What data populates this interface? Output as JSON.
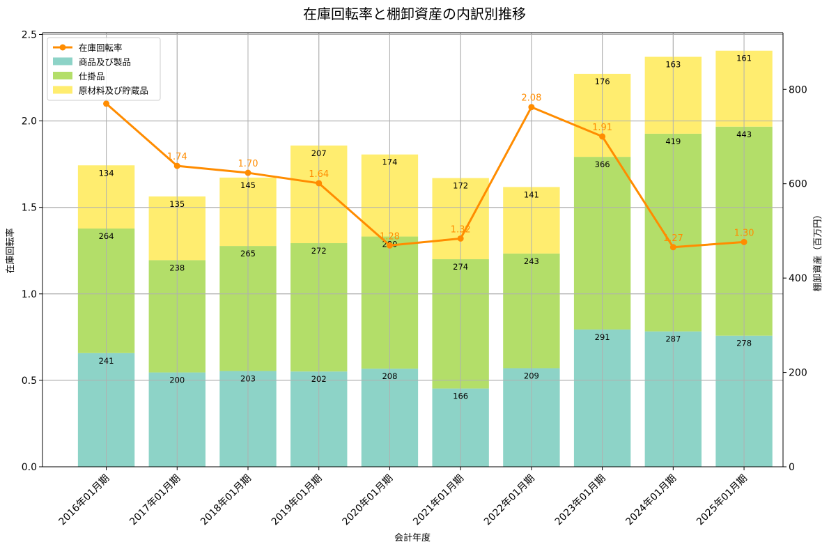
{
  "chart_data": {
    "type": "bar",
    "title": "在庫回転率と棚卸資産の内訳別推移",
    "xlabel": "会計年度",
    "ylabel_left": "在庫回転率",
    "ylabel_right": "棚卸資産（百万円）",
    "categories": [
      "2016年01月期",
      "2017年01月期",
      "2018年01月期",
      "2019年01月期",
      "2020年01月期",
      "2021年01月期",
      "2022年01月期",
      "2023年01月期",
      "2024年01月期",
      "2025年01月期"
    ],
    "series": [
      {
        "name": "商品及び製品",
        "kind": "stacked-bar",
        "axis": "right",
        "color": "#8dd3c7",
        "values": [
          241,
          200,
          203,
          202,
          208,
          166,
          209,
          291,
          287,
          278
        ]
      },
      {
        "name": "仕掛品",
        "kind": "stacked-bar",
        "axis": "right",
        "color": "#b3de69",
        "values": [
          264,
          238,
          265,
          272,
          280,
          274,
          243,
          366,
          419,
          443
        ]
      },
      {
        "name": "原材料及び貯蔵品",
        "kind": "stacked-bar",
        "axis": "right",
        "color": "#ffed6f",
        "values": [
          134,
          135,
          145,
          207,
          174,
          172,
          141,
          176,
          163,
          161
        ]
      },
      {
        "name": "在庫回転率",
        "kind": "line",
        "axis": "left",
        "color": "#ff8c00",
        "values": [
          2.1,
          1.74,
          1.7,
          1.64,
          1.28,
          1.32,
          2.08,
          1.91,
          1.27,
          1.3
        ],
        "labels": [
          "",
          "1.74",
          "1.70",
          "1.64",
          "1.28",
          "1.32",
          "2.08",
          "1.91",
          "1.27",
          "1.30"
        ]
      }
    ],
    "bar_labels": {
      "商品及び製品": [
        "241",
        "200",
        "203",
        "202",
        "208",
        "166",
        "209",
        "291",
        "287",
        "278"
      ],
      "仕掛品": [
        "264",
        "238",
        "265",
        "272",
        "280",
        "274",
        "243",
        "366",
        "419",
        "443"
      ],
      "原材料及び貯蔵品": [
        "134",
        "135",
        "145",
        "207",
        "174",
        "172",
        "141",
        "176",
        "163",
        "161"
      ]
    },
    "ylim_left": [
      0,
      2.51
    ],
    "ylim_right": [
      0,
      920
    ],
    "yticks_left": [
      "0.0",
      "0.5",
      "1.0",
      "1.5",
      "2.0",
      "2.5"
    ],
    "yticks_left_values": [
      0,
      0.5,
      1.0,
      1.5,
      2.0,
      2.5
    ],
    "yticks_right": [
      "0",
      "200",
      "400",
      "600",
      "800"
    ],
    "yticks_right_values": [
      0,
      200,
      400,
      600,
      800
    ],
    "grid": true,
    "legend_position": "top-left",
    "legend_order": [
      "在庫回転率",
      "商品及び製品",
      "仕掛品",
      "原材料及び貯蔵品"
    ]
  }
}
